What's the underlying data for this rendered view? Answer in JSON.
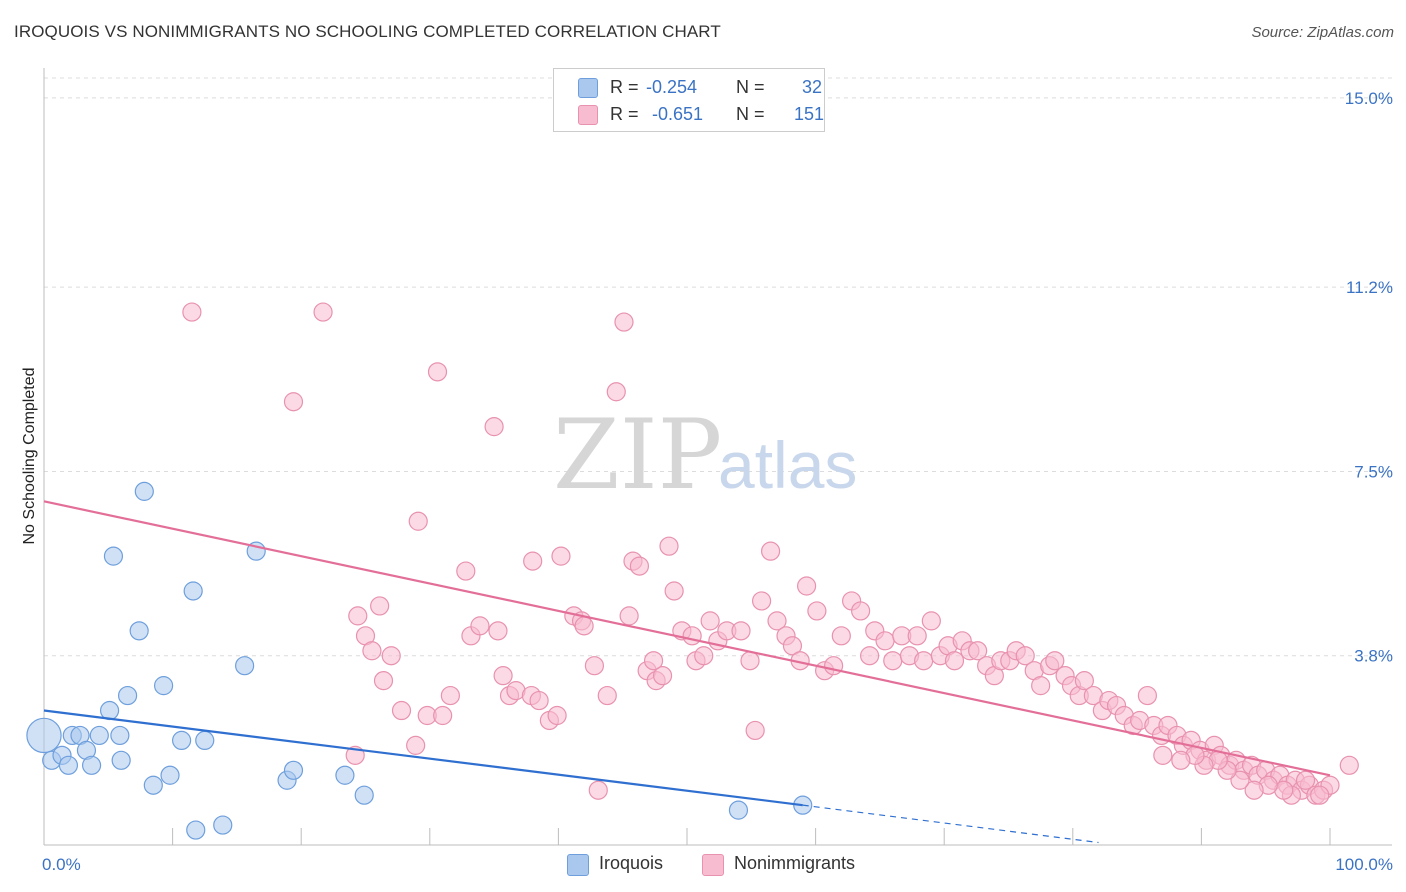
{
  "title": "IROQUOIS VS NONIMMIGRANTS NO SCHOOLING COMPLETED CORRELATION CHART",
  "source": "Source: ZipAtlas.com",
  "watermark": {
    "zip": "ZIP",
    "atlas": "atlas"
  },
  "legend": {
    "rows": [
      {
        "r_label": "R =",
        "r_value": "-0.254",
        "n_label": "N =",
        "n_value": "32",
        "color": "#aac8ee",
        "border": "#6e9fdc"
      },
      {
        "r_label": "R =",
        "r_value": "-0.651",
        "n_label": "N =",
        "n_value": "151",
        "color": "#f7bcd0",
        "border": "#e892ae"
      }
    ]
  },
  "bottom_legend": [
    {
      "label": "Iroquois",
      "color": "#aac8ee",
      "border": "#6e9fdc"
    },
    {
      "label": "Nonimmigrants",
      "color": "#f7bcd0",
      "border": "#e892ae"
    }
  ],
  "chart_data": {
    "type": "scatter",
    "title": "IROQUOIS VS NONIMMIGRANTS NO SCHOOLING COMPLETED CORRELATION CHART",
    "xlabel": "",
    "ylabel": "No Schooling Completed",
    "xlim": [
      0,
      100
    ],
    "ylim": [
      0,
      15.4
    ],
    "x_tick_labels": [
      "0.0%",
      "100.0%"
    ],
    "y_ticks": [
      3.8,
      7.5,
      11.2,
      15.0
    ],
    "y_tick_labels": [
      "3.8%",
      "7.5%",
      "11.2%",
      "15.0%"
    ],
    "grid": true,
    "legend_position": "top-center",
    "series": [
      {
        "name": "Iroquois",
        "color": "#aac8ee",
        "stroke": "#6e9fdc",
        "points": [
          [
            0.0,
            2.2,
            1.9
          ],
          [
            0.6,
            1.7,
            1
          ],
          [
            1.4,
            1.8,
            1
          ],
          [
            1.9,
            1.6,
            1
          ],
          [
            2.2,
            2.2,
            1
          ],
          [
            2.8,
            2.2,
            1
          ],
          [
            3.3,
            1.9,
            1
          ],
          [
            3.7,
            1.6,
            1
          ],
          [
            4.3,
            2.2,
            1
          ],
          [
            5.1,
            2.7,
            1
          ],
          [
            5.9,
            2.2,
            1
          ],
          [
            6.0,
            1.7,
            1
          ],
          [
            6.5,
            3.0,
            1
          ],
          [
            5.4,
            5.8,
            1
          ],
          [
            7.4,
            4.3,
            1
          ],
          [
            7.8,
            7.1,
            1
          ],
          [
            8.5,
            1.2,
            1
          ],
          [
            9.3,
            3.2,
            1
          ],
          [
            9.8,
            1.4,
            1
          ],
          [
            10.7,
            2.1,
            1
          ],
          [
            11.8,
            0.3,
            1
          ],
          [
            11.6,
            5.1,
            1
          ],
          [
            12.5,
            2.1,
            1
          ],
          [
            13.9,
            0.4,
            1
          ],
          [
            15.6,
            3.6,
            1
          ],
          [
            16.5,
            5.9,
            1
          ],
          [
            18.9,
            1.3,
            1
          ],
          [
            19.4,
            1.5,
            1
          ],
          [
            23.4,
            1.4,
            1
          ],
          [
            24.9,
            1.0,
            1
          ],
          [
            54.0,
            0.7,
            1
          ],
          [
            59.0,
            0.8,
            1
          ]
        ]
      },
      {
        "name": "Nonimmigrants",
        "color": "#f7bcd0",
        "stroke": "#e892ae",
        "points": [
          [
            11.5,
            10.7,
            1
          ],
          [
            19.4,
            8.9,
            1
          ],
          [
            21.7,
            10.7,
            1
          ],
          [
            24.2,
            1.8,
            1
          ],
          [
            24.4,
            4.6,
            1
          ],
          [
            25.0,
            4.2,
            1
          ],
          [
            25.5,
            3.9,
            1
          ],
          [
            26.1,
            4.8,
            1
          ],
          [
            26.4,
            3.3,
            1
          ],
          [
            27.0,
            3.8,
            1
          ],
          [
            27.8,
            2.7,
            1
          ],
          [
            28.9,
            2.0,
            1
          ],
          [
            29.1,
            6.5,
            1
          ],
          [
            29.8,
            2.6,
            1
          ],
          [
            30.6,
            9.5,
            1
          ],
          [
            31.0,
            2.6,
            1
          ],
          [
            31.6,
            3.0,
            1
          ],
          [
            32.8,
            5.5,
            1
          ],
          [
            33.2,
            4.2,
            1
          ],
          [
            33.9,
            4.4,
            1
          ],
          [
            35.0,
            8.4,
            1
          ],
          [
            35.3,
            4.3,
            1
          ],
          [
            35.7,
            3.4,
            1
          ],
          [
            36.2,
            3.0,
            1
          ],
          [
            36.7,
            3.1,
            1
          ],
          [
            37.9,
            3.0,
            1
          ],
          [
            38.0,
            5.7,
            1
          ],
          [
            38.5,
            2.9,
            1
          ],
          [
            39.3,
            2.5,
            1
          ],
          [
            39.9,
            2.6,
            1
          ],
          [
            40.2,
            5.8,
            1
          ],
          [
            41.2,
            4.6,
            1
          ],
          [
            41.8,
            4.5,
            1
          ],
          [
            42.0,
            4.4,
            1
          ],
          [
            42.8,
            3.6,
            1
          ],
          [
            43.1,
            1.1,
            1
          ],
          [
            43.8,
            3.0,
            1
          ],
          [
            44.5,
            9.1,
            1
          ],
          [
            45.1,
            10.5,
            1
          ],
          [
            45.5,
            4.6,
            1
          ],
          [
            45.8,
            5.7,
            1
          ],
          [
            46.3,
            5.6,
            1
          ],
          [
            46.9,
            3.5,
            1
          ],
          [
            47.6,
            3.3,
            1
          ],
          [
            48.1,
            3.4,
            1
          ],
          [
            47.4,
            3.7,
            1
          ],
          [
            48.6,
            6.0,
            1
          ],
          [
            49.0,
            5.1,
            1
          ],
          [
            49.6,
            4.3,
            1
          ],
          [
            50.4,
            4.2,
            1
          ],
          [
            50.7,
            3.7,
            1
          ],
          [
            51.3,
            3.8,
            1
          ],
          [
            51.8,
            4.5,
            1
          ],
          [
            52.4,
            4.1,
            1
          ],
          [
            53.1,
            4.3,
            1
          ],
          [
            54.2,
            4.3,
            1
          ],
          [
            54.9,
            3.7,
            1
          ],
          [
            55.3,
            2.3,
            1
          ],
          [
            55.8,
            4.9,
            1
          ],
          [
            56.5,
            5.9,
            1
          ],
          [
            57.0,
            4.5,
            1
          ],
          [
            57.7,
            4.2,
            1
          ],
          [
            58.2,
            4.0,
            1
          ],
          [
            58.8,
            3.7,
            1
          ],
          [
            59.3,
            5.2,
            1
          ],
          [
            60.1,
            4.7,
            1
          ],
          [
            60.7,
            3.5,
            1
          ],
          [
            61.4,
            3.6,
            1
          ],
          [
            62.0,
            4.2,
            1
          ],
          [
            62.8,
            4.9,
            1
          ],
          [
            63.5,
            4.7,
            1
          ],
          [
            64.2,
            3.8,
            1
          ],
          [
            64.6,
            4.3,
            1
          ],
          [
            65.4,
            4.1,
            1
          ],
          [
            66.0,
            3.7,
            1
          ],
          [
            66.7,
            4.2,
            1
          ],
          [
            67.3,
            3.8,
            1
          ],
          [
            67.9,
            4.2,
            1
          ],
          [
            68.4,
            3.7,
            1
          ],
          [
            69.0,
            4.5,
            1
          ],
          [
            69.7,
            3.8,
            1
          ],
          [
            70.3,
            4.0,
            1
          ],
          [
            70.8,
            3.7,
            1
          ],
          [
            71.4,
            4.1,
            1
          ],
          [
            72.0,
            3.9,
            1
          ],
          [
            72.6,
            3.9,
            1
          ],
          [
            73.3,
            3.6,
            1
          ],
          [
            73.9,
            3.4,
            1
          ],
          [
            74.4,
            3.7,
            1
          ],
          [
            75.1,
            3.7,
            1
          ],
          [
            75.6,
            3.9,
            1
          ],
          [
            76.3,
            3.8,
            1
          ],
          [
            77.0,
            3.5,
            1
          ],
          [
            77.5,
            3.2,
            1
          ],
          [
            78.2,
            3.6,
            1
          ],
          [
            78.6,
            3.7,
            1
          ],
          [
            79.4,
            3.4,
            1
          ],
          [
            79.9,
            3.2,
            1
          ],
          [
            80.5,
            3.0,
            1
          ],
          [
            80.9,
            3.3,
            1
          ],
          [
            81.6,
            3.0,
            1
          ],
          [
            82.3,
            2.7,
            1
          ],
          [
            82.8,
            2.9,
            1
          ],
          [
            83.4,
            2.8,
            1
          ],
          [
            84.0,
            2.6,
            1
          ],
          [
            84.7,
            2.4,
            1
          ],
          [
            85.2,
            2.5,
            1
          ],
          [
            85.8,
            3.0,
            1
          ],
          [
            86.3,
            2.4,
            1
          ],
          [
            86.9,
            2.2,
            1
          ],
          [
            87.4,
            2.4,
            1
          ],
          [
            88.1,
            2.2,
            1
          ],
          [
            88.6,
            2.0,
            1
          ],
          [
            89.2,
            2.1,
            1
          ],
          [
            89.9,
            1.9,
            1
          ],
          [
            90.4,
            1.7,
            1
          ],
          [
            91.0,
            2.0,
            1
          ],
          [
            91.5,
            1.8,
            1
          ],
          [
            92.2,
            1.6,
            1
          ],
          [
            92.7,
            1.7,
            1
          ],
          [
            93.3,
            1.5,
            1
          ],
          [
            93.9,
            1.6,
            1
          ],
          [
            94.4,
            1.4,
            1
          ],
          [
            95.0,
            1.5,
            1
          ],
          [
            95.6,
            1.3,
            1
          ],
          [
            96.1,
            1.4,
            1
          ],
          [
            96.7,
            1.2,
            1
          ],
          [
            97.3,
            1.3,
            1
          ],
          [
            97.8,
            1.1,
            1
          ],
          [
            98.4,
            1.2,
            1
          ],
          [
            98.9,
            1.0,
            1
          ],
          [
            99.5,
            1.1,
            1
          ],
          [
            100.0,
            1.2,
            1
          ],
          [
            99.2,
            1.0,
            1
          ],
          [
            98.1,
            1.3,
            1
          ],
          [
            97.0,
            1.0,
            1
          ],
          [
            96.4,
            1.1,
            1
          ],
          [
            95.2,
            1.2,
            1
          ],
          [
            94.1,
            1.1,
            1
          ],
          [
            93.0,
            1.3,
            1
          ],
          [
            92.0,
            1.5,
            1
          ],
          [
            91.3,
            1.7,
            1
          ],
          [
            90.2,
            1.6,
            1
          ],
          [
            89.5,
            1.8,
            1
          ],
          [
            88.4,
            1.7,
            1
          ],
          [
            87.0,
            1.8,
            1
          ],
          [
            101.5,
            1.6,
            1
          ]
        ]
      }
    ],
    "trendlines": [
      {
        "series": "Iroquois",
        "color": "#2f6fd0",
        "x0": 0,
        "y0": 2.7,
        "x1": 59,
        "y1": 0.8,
        "dashed_to_x": 82,
        "dashed_to_y": 0.05
      },
      {
        "series": "Nonimmigrants",
        "color": "#e36f98",
        "x0": 0,
        "y0": 6.9,
        "x1": 100,
        "y1": 1.4
      }
    ]
  }
}
